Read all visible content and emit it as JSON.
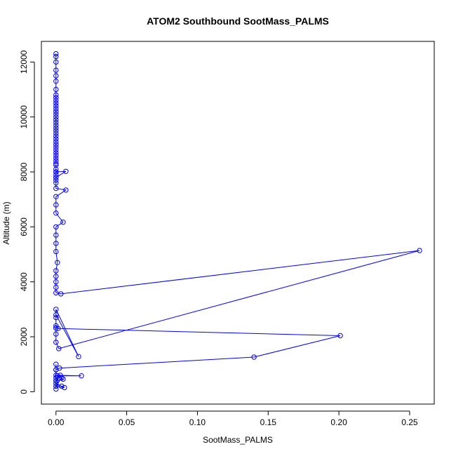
{
  "chart_data": {
    "type": "scatter",
    "title": "ATOM2 Southbound SootMass_PALMS",
    "xlabel": "SootMass_PALMS",
    "ylabel": "Altitude (m)",
    "xlim": [
      -0.0103,
      0.2674
    ],
    "ylim": [
      -450,
      12750
    ],
    "x_ticks": [
      "0.00",
      "0.05",
      "0.10",
      "0.15",
      "0.20",
      "0.25"
    ],
    "x_tick_values": [
      0,
      0.05,
      0.1,
      0.15,
      0.2,
      0.25
    ],
    "y_ticks": [
      "0",
      "2000",
      "4000",
      "6000",
      "8000",
      "10000",
      "12000"
    ],
    "y_tick_values": [
      0,
      2000,
      4000,
      6000,
      8000,
      10000,
      12000
    ],
    "grid": false,
    "series_color": "#0000ff",
    "marker": "open-circle",
    "connect_points": true,
    "series": [
      {
        "x": [
          0,
          0,
          0,
          0,
          0,
          0,
          0,
          0,
          0,
          0,
          0,
          0,
          0,
          0,
          0,
          0,
          0,
          0,
          0,
          0,
          0,
          0,
          0,
          0,
          0,
          0,
          0,
          0,
          0,
          0,
          0,
          0,
          0,
          0,
          0,
          0,
          0,
          0,
          0,
          0,
          0.007,
          0,
          0,
          0,
          0.007,
          0,
          0,
          0,
          0.005,
          0,
          0,
          0,
          0,
          0.001,
          0,
          0,
          0,
          0,
          0,
          0.0035,
          0.257,
          0.002,
          0,
          0,
          0,
          0.016,
          0,
          0,
          0,
          0,
          0,
          0.0015,
          0.201,
          0.14,
          0.0025,
          0,
          0,
          0.018,
          0.001,
          0.005,
          0,
          0.003,
          0.004,
          0,
          0.006,
          0.004,
          0,
          0,
          0,
          0,
          0,
          0
        ],
        "y": [
          12300,
          12200,
          12000,
          11700,
          11500,
          11300,
          11000,
          10800,
          10700,
          10600,
          10500,
          10400,
          10300,
          10200,
          10100,
          10000,
          9900,
          9800,
          9700,
          9600,
          9500,
          9400,
          9300,
          9200,
          9100,
          9000,
          8900,
          8800,
          8700,
          8600,
          8500,
          8400,
          8300,
          8250,
          8100,
          8000,
          7900,
          7800,
          7700,
          8000,
          8020,
          7800,
          7600,
          7400,
          7340,
          7100,
          6800,
          6500,
          6170,
          6000,
          5700,
          5400,
          5100,
          4700,
          4400,
          4200,
          4000,
          3800,
          3600,
          3560,
          5140,
          1570,
          1800,
          2100,
          2800,
          1280,
          3000,
          2700,
          2400,
          2320,
          2320,
          2300,
          2040,
          1260,
          860,
          800,
          600,
          580,
          580,
          460,
          400,
          600,
          500,
          200,
          150,
          200,
          300,
          500,
          800,
          1000,
          400,
          100
        ]
      }
    ]
  }
}
